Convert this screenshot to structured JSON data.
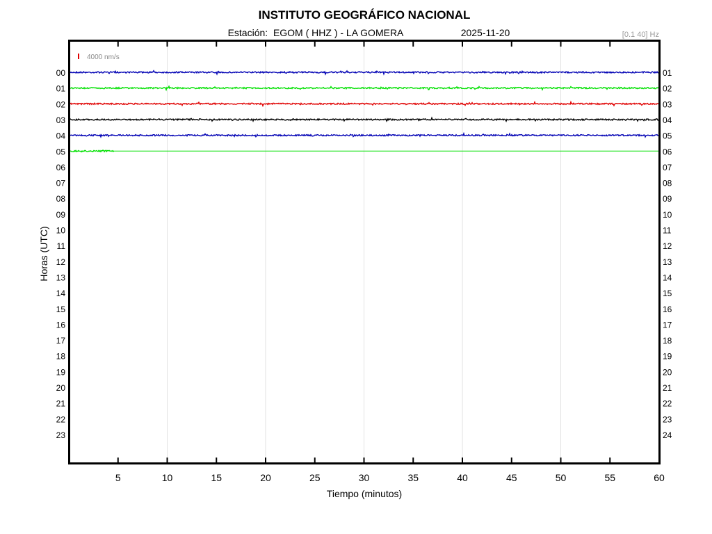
{
  "chart_data": {
    "type": "line",
    "title": "INSTITUTO GEOGRÁFICO NACIONAL",
    "subtitle_station": "Estación:  EGOM ( HHZ ) - LA GOMERA",
    "subtitle_date": "2025-11-20",
    "filter_label": "[0.1 40] Hz",
    "scale_label": "4000 nm/s",
    "scale_color": "#e00000",
    "xlabel": "Tiempo (minutos)",
    "ylabel": "Horas (UTC)",
    "xlim": [
      0,
      60
    ],
    "x_ticks": [
      "5",
      "10",
      "15",
      "20",
      "25",
      "30",
      "35",
      "40",
      "45",
      "50",
      "55",
      "60"
    ],
    "grid": "vertical every 10 minutes",
    "left_hour_labels": [
      "00",
      "01",
      "02",
      "03",
      "04",
      "05",
      "06",
      "07",
      "08",
      "09",
      "10",
      "11",
      "12",
      "13",
      "14",
      "15",
      "16",
      "17",
      "18",
      "19",
      "20",
      "21",
      "22",
      "23"
    ],
    "right_hour_labels": [
      "01",
      "02",
      "03",
      "04",
      "05",
      "06",
      "07",
      "08",
      "09",
      "10",
      "11",
      "12",
      "13",
      "14",
      "15",
      "16",
      "17",
      "18",
      "19",
      "20",
      "21",
      "22",
      "23",
      "24"
    ],
    "series": [
      {
        "hour": "00",
        "color": "#0000b4",
        "data_until_minute": 60
      },
      {
        "hour": "01",
        "color": "#00e000",
        "data_until_minute": 60
      },
      {
        "hour": "02",
        "color": "#e00000",
        "data_until_minute": 60
      },
      {
        "hour": "03",
        "color": "#000000",
        "data_until_minute": 60
      },
      {
        "hour": "04",
        "color": "#0000b4",
        "data_until_minute": 60
      },
      {
        "hour": "05",
        "color": "#00e000",
        "data_until_minute": 4.6
      }
    ]
  }
}
